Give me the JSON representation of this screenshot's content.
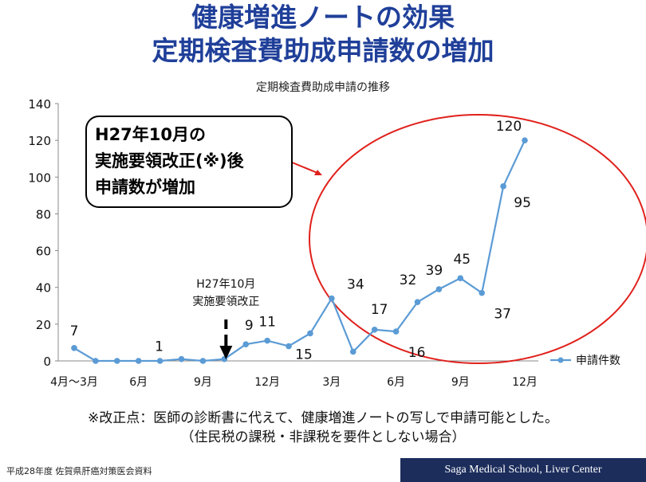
{
  "slide": {
    "title_line1": "健康増進ノートの効果",
    "title_line2": "定期検査費助成申請数の増加",
    "note_line1": "※改正点：医師の診断書に代えて、健康増進ノートの写しで申請可能とした。",
    "note_line2": "（住民税の課税・非課税を要件としない場合）",
    "source": "平成28年度 佐賀県肝癌対策医会資料",
    "footer": "Saga Medical School, Liver Center"
  },
  "colors": {
    "title": "#1f3f99",
    "series": "#5b9bd5",
    "circle": "#e0201b",
    "footer_band": "#1c2d5c"
  },
  "chart_data": {
    "type": "line",
    "title": "定期検査費助成申請の推移",
    "xlabel": "",
    "ylabel": "",
    "ylim": [
      0,
      140
    ],
    "yticks": [
      0,
      20,
      40,
      60,
      80,
      100,
      120,
      140
    ],
    "grid": false,
    "legend": "right",
    "x_tick_labels": [
      {
        "index": 0,
        "label": "4月〜3月"
      },
      {
        "index": 3,
        "label": "6月"
      },
      {
        "index": 6,
        "label": "9月"
      },
      {
        "index": 9,
        "label": "12月"
      },
      {
        "index": 12,
        "label": "3月"
      },
      {
        "index": 15,
        "label": "6月"
      },
      {
        "index": 18,
        "label": "9月"
      },
      {
        "index": 21,
        "label": "12月"
      }
    ],
    "series": [
      {
        "name": "申請件数",
        "values": [
          7,
          0,
          0,
          0,
          0,
          1,
          0,
          1,
          9,
          11,
          8,
          15,
          34,
          5,
          17,
          16,
          32,
          39,
          45,
          37,
          95,
          120
        ]
      }
    ],
    "data_labels": [
      {
        "index": 0,
        "text": "7"
      },
      {
        "index": 5,
        "text": "1"
      },
      {
        "index": 8,
        "text": "9"
      },
      {
        "index": 9,
        "text": "11"
      },
      {
        "index": 11,
        "text": "15"
      },
      {
        "index": 12,
        "text": "34"
      },
      {
        "index": 14,
        "text": "17"
      },
      {
        "index": 15,
        "text": "16"
      },
      {
        "index": 16,
        "text": "32"
      },
      {
        "index": 17,
        "text": "39"
      },
      {
        "index": 18,
        "text": "45"
      },
      {
        "index": 19,
        "text": "37"
      },
      {
        "index": 20,
        "text": "95"
      },
      {
        "index": 21,
        "text": "120"
      }
    ],
    "annotations": {
      "arrow_label_line1": "H27年10月",
      "arrow_label_line2": "実施要領改正",
      "arrow_index": 7,
      "callout_line1": "H27年10月の",
      "callout_line2": "実施要領改正(※)後",
      "callout_line3": "申請数が増加"
    }
  }
}
